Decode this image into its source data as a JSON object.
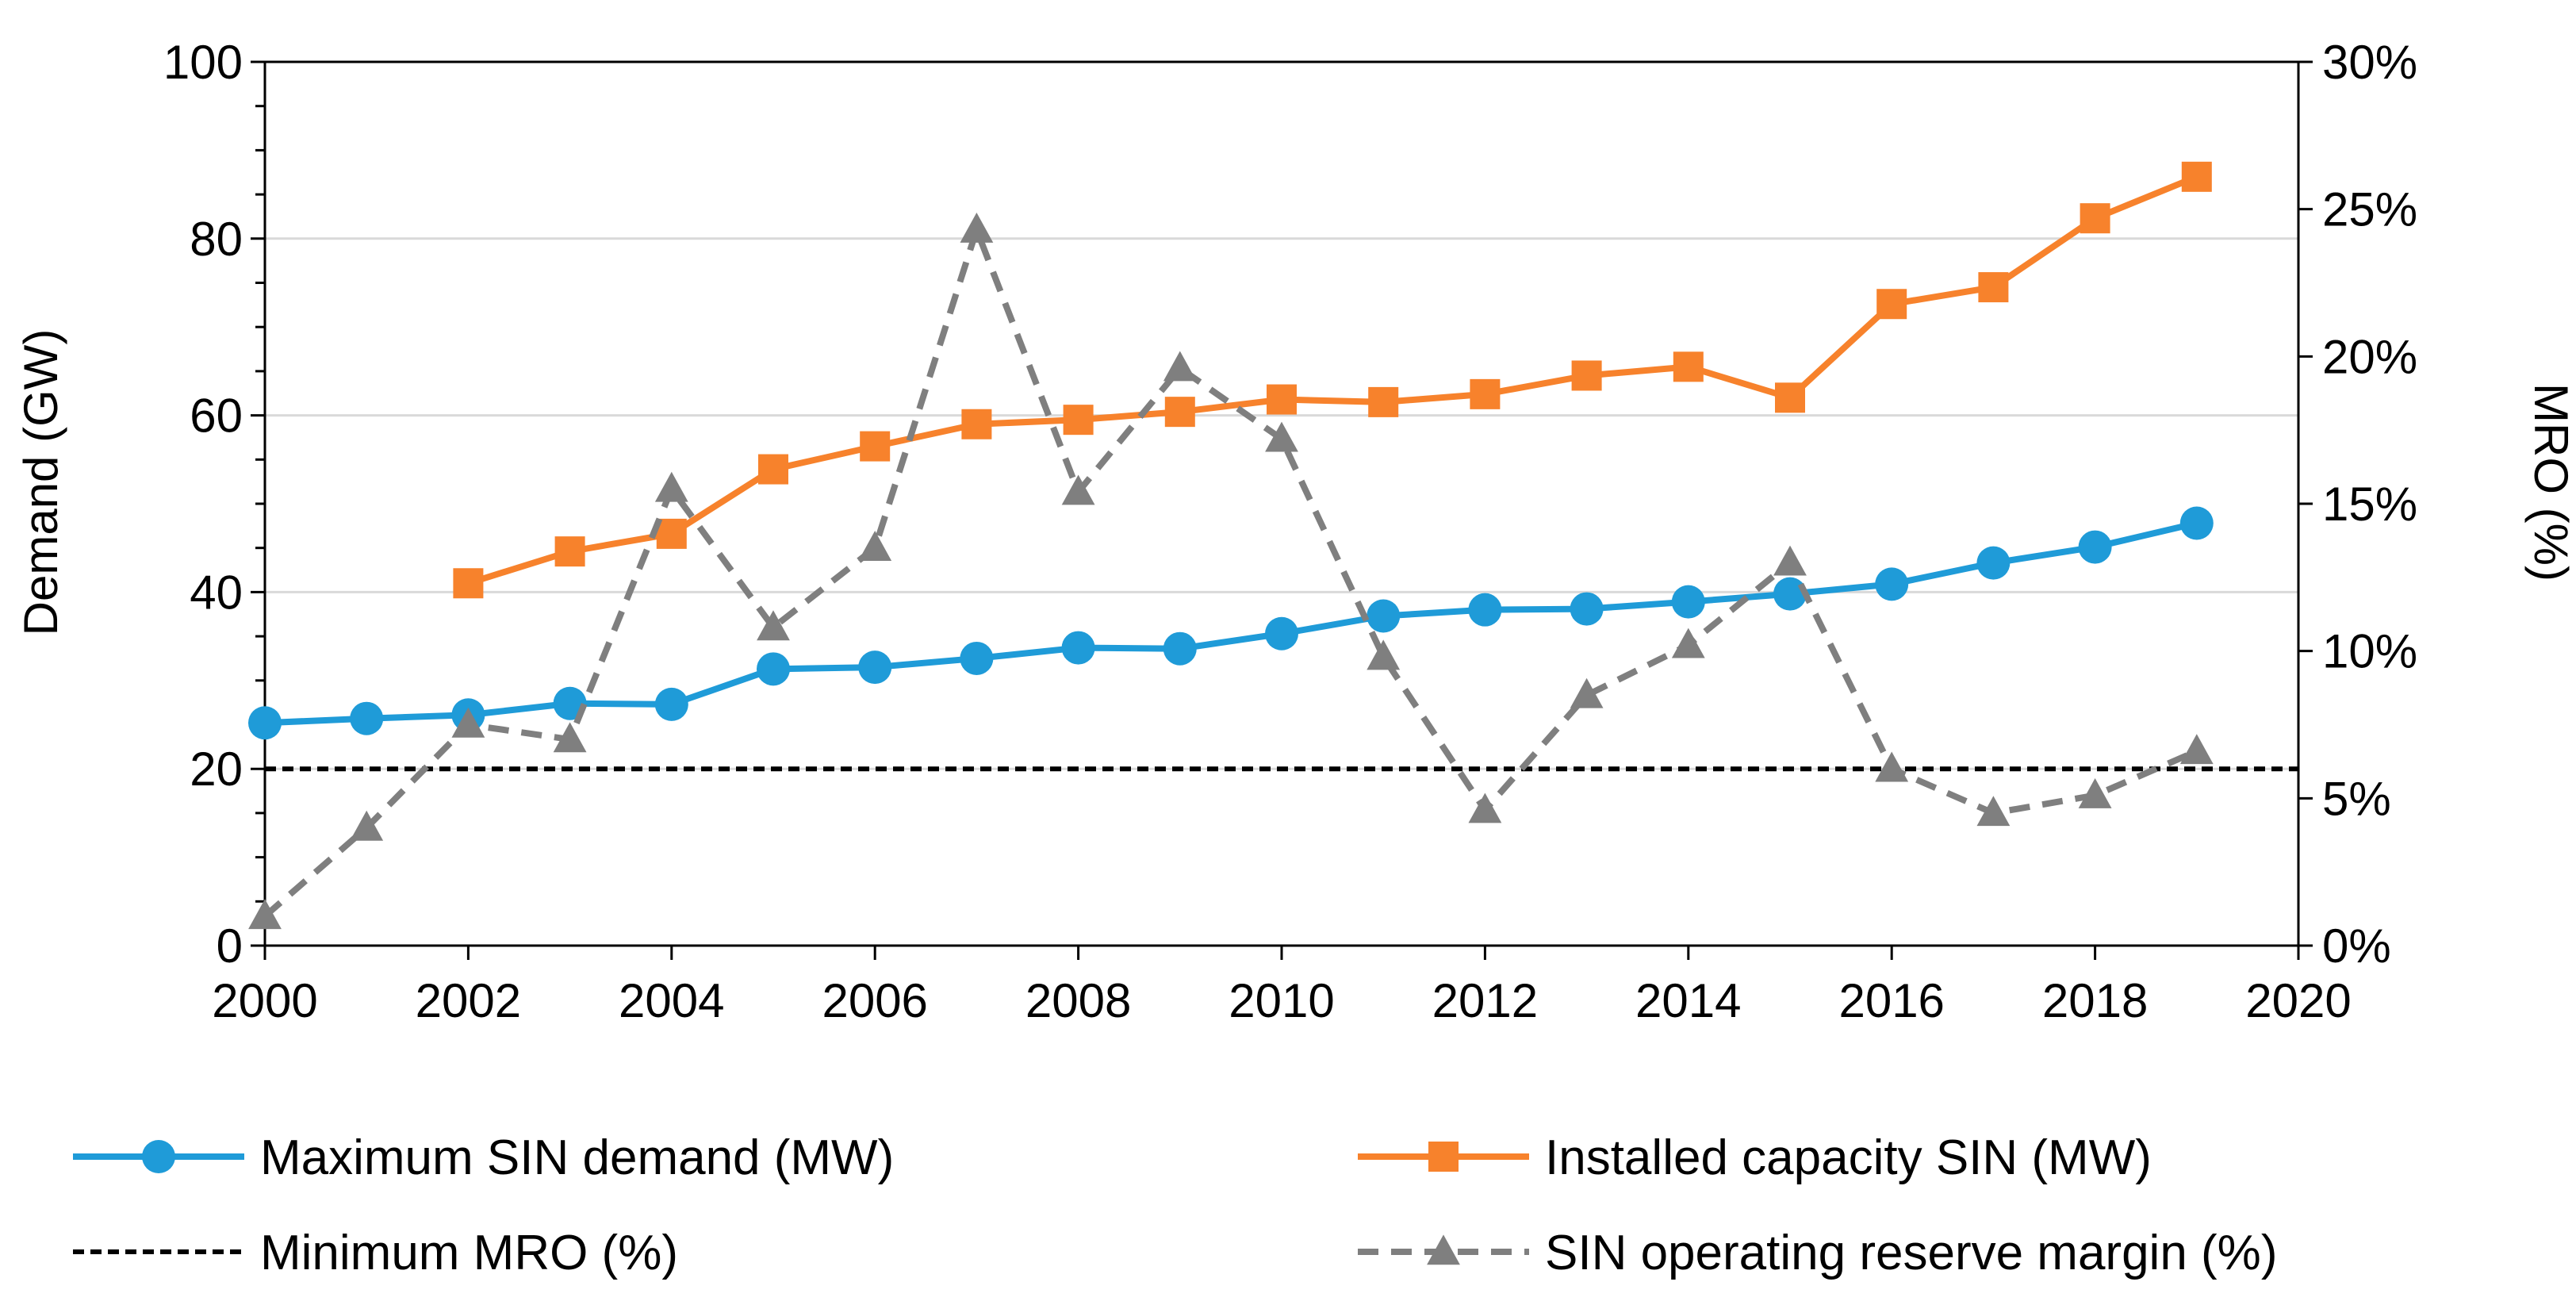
{
  "chart_data": {
    "type": "line",
    "title": "",
    "xlabel": "",
    "ylabel": "Demand (GW)",
    "y2label": "MRO (%)",
    "xlim": [
      2000,
      2020
    ],
    "ylim": [
      0,
      100
    ],
    "y2lim": [
      0,
      30
    ],
    "x_ticks": [
      "2000",
      "2002",
      "2004",
      "2006",
      "2008",
      "2010",
      "2012",
      "2014",
      "2016",
      "2018",
      "2020"
    ],
    "y_ticks": [
      "0",
      "20",
      "40",
      "60",
      "80",
      "100"
    ],
    "y2_ticks": [
      "0%",
      "5%",
      "10%",
      "15%",
      "20%",
      "25%",
      "30%"
    ],
    "legend_position": "bottom",
    "series": [
      {
        "name": "Maximum SIN demand (MW)",
        "axis": "left",
        "color": "#1f9bd8",
        "style": "solid",
        "marker": "circle",
        "x": [
          2000,
          2001,
          2002,
          2003,
          2004,
          2005,
          2006,
          2007,
          2008,
          2009,
          2010,
          2011,
          2012,
          2013,
          2014,
          2015,
          2016,
          2017,
          2018,
          2019
        ],
        "values": [
          25.2,
          25.7,
          26.1,
          27.4,
          27.3,
          31.3,
          31.5,
          32.5,
          33.7,
          33.6,
          35.3,
          37.3,
          38.0,
          38.1,
          38.9,
          39.8,
          40.9,
          43.3,
          45.1,
          47.8
        ]
      },
      {
        "name": "Installed capacity SIN (MW)",
        "axis": "left",
        "color": "#f7822c",
        "style": "solid",
        "marker": "square",
        "x": [
          2002,
          2003,
          2004,
          2005,
          2006,
          2007,
          2008,
          2009,
          2010,
          2011,
          2012,
          2013,
          2014,
          2015,
          2016,
          2017,
          2018,
          2019
        ],
        "values": [
          41.0,
          44.6,
          46.6,
          53.9,
          56.5,
          59.0,
          59.5,
          60.4,
          61.8,
          61.5,
          62.4,
          64.5,
          65.5,
          62.0,
          72.6,
          74.5,
          82.3,
          87.0
        ]
      },
      {
        "name": "Minimum MRO (%)",
        "axis": "right",
        "color": "#000000",
        "style": "dashed",
        "marker": "none",
        "x": [
          2000,
          2020
        ],
        "values": [
          6.0,
          6.0
        ]
      },
      {
        "name": "SIN operating reserve margin (%)",
        "axis": "right",
        "color": "#7f7f7f",
        "style": "dashed",
        "marker": "triangle",
        "x": [
          2000,
          2001,
          2002,
          2003,
          2004,
          2005,
          2006,
          2007,
          2008,
          2009,
          2010,
          2011,
          2012,
          2013,
          2014,
          2015,
          2016,
          2017,
          2018,
          2019
        ],
        "values": [
          1.0,
          4.0,
          7.5,
          7.0,
          15.5,
          10.8,
          13.5,
          24.3,
          15.4,
          19.6,
          17.2,
          9.8,
          4.6,
          8.5,
          10.2,
          13.0,
          6.0,
          4.5,
          5.1,
          6.6
        ]
      }
    ]
  }
}
